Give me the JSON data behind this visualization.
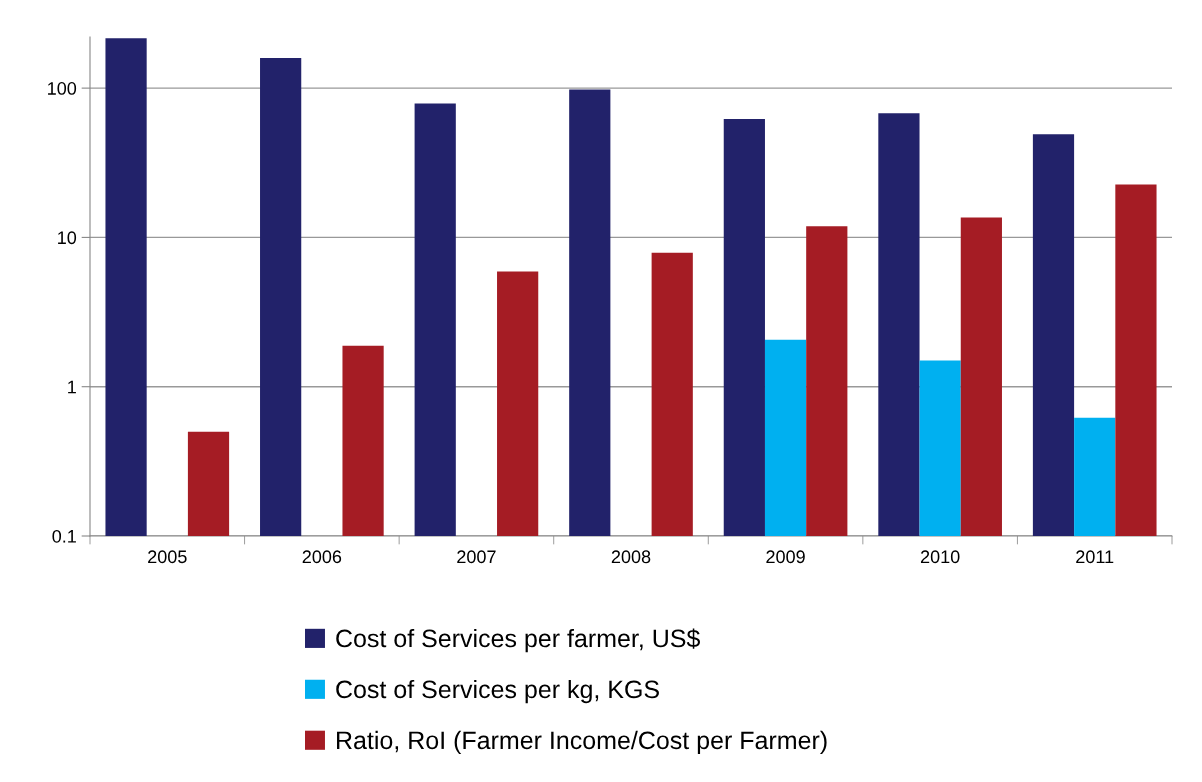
{
  "chart_data": {
    "type": "bar",
    "categories": [
      "2005",
      "2006",
      "2007",
      "2008",
      "2009",
      "2010",
      "2011"
    ],
    "series": [
      {
        "name": "Cost of Services per farmer, US$",
        "color": "#22226a",
        "values": [
          216,
          159,
          79,
          98,
          62,
          68,
          49
        ]
      },
      {
        "name": "Cost of Services per kg, KGS",
        "color": "#00b0f0",
        "values": [
          null,
          null,
          null,
          null,
          2.06,
          1.5,
          0.62
        ]
      },
      {
        "name": "Ratio, RoI (Farmer Income/Cost per Farmer)",
        "color": "#a51c24",
        "values": [
          0.5,
          1.88,
          5.9,
          7.9,
          11.9,
          13.6,
          22.6
        ]
      }
    ],
    "log": "y",
    "ylim": [
      0.1,
      220
    ],
    "yticks": [
      0.1,
      1,
      10,
      100
    ],
    "grid": "y",
    "legend": "bottom"
  }
}
